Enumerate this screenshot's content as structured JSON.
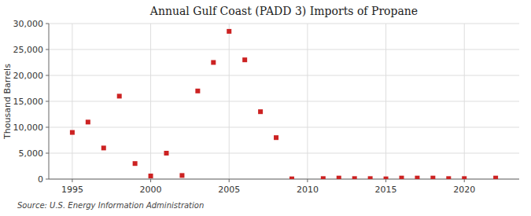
{
  "chart_data": {
    "type": "scatter",
    "title": "Annual Gulf Coast (PADD 3) Imports of Propane",
    "ylabel": "Thousand Barrels",
    "annotations": [
      "Source: U.S. Energy Information Administration"
    ],
    "x": [
      1995,
      1996,
      1997,
      1998,
      1999,
      2000,
      2001,
      2002,
      2003,
      2004,
      2005,
      2006,
      2007,
      2008,
      2009,
      2011,
      2012,
      2013,
      2014,
      2015,
      2016,
      2017,
      2018,
      2019,
      2020,
      2022
    ],
    "values": [
      9000,
      11000,
      6000,
      16000,
      3000,
      600,
      5000,
      700,
      17000,
      22500,
      28500,
      23000,
      13000,
      8000,
      50,
      100,
      200,
      100,
      100,
      50,
      200,
      200,
      200,
      100,
      100,
      200
    ],
    "color": "#cc2222",
    "marker": "square",
    "xlim": [
      1993.5,
      2023.5
    ],
    "ylim": [
      0,
      30000
    ],
    "xticks": [
      1995,
      2000,
      2005,
      2010,
      2015,
      2020
    ],
    "yticks": [
      0,
      {
        "value": 5000,
        "label": "5,000"
      },
      {
        "value": 10000,
        "label": "10,000"
      },
      {
        "value": 15000,
        "label": "15,000"
      },
      {
        "value": 20000,
        "label": "20,000"
      },
      {
        "value": 25000,
        "label": "25,000"
      },
      {
        "value": 30000,
        "label": "30,000"
      }
    ],
    "grid": true
  }
}
